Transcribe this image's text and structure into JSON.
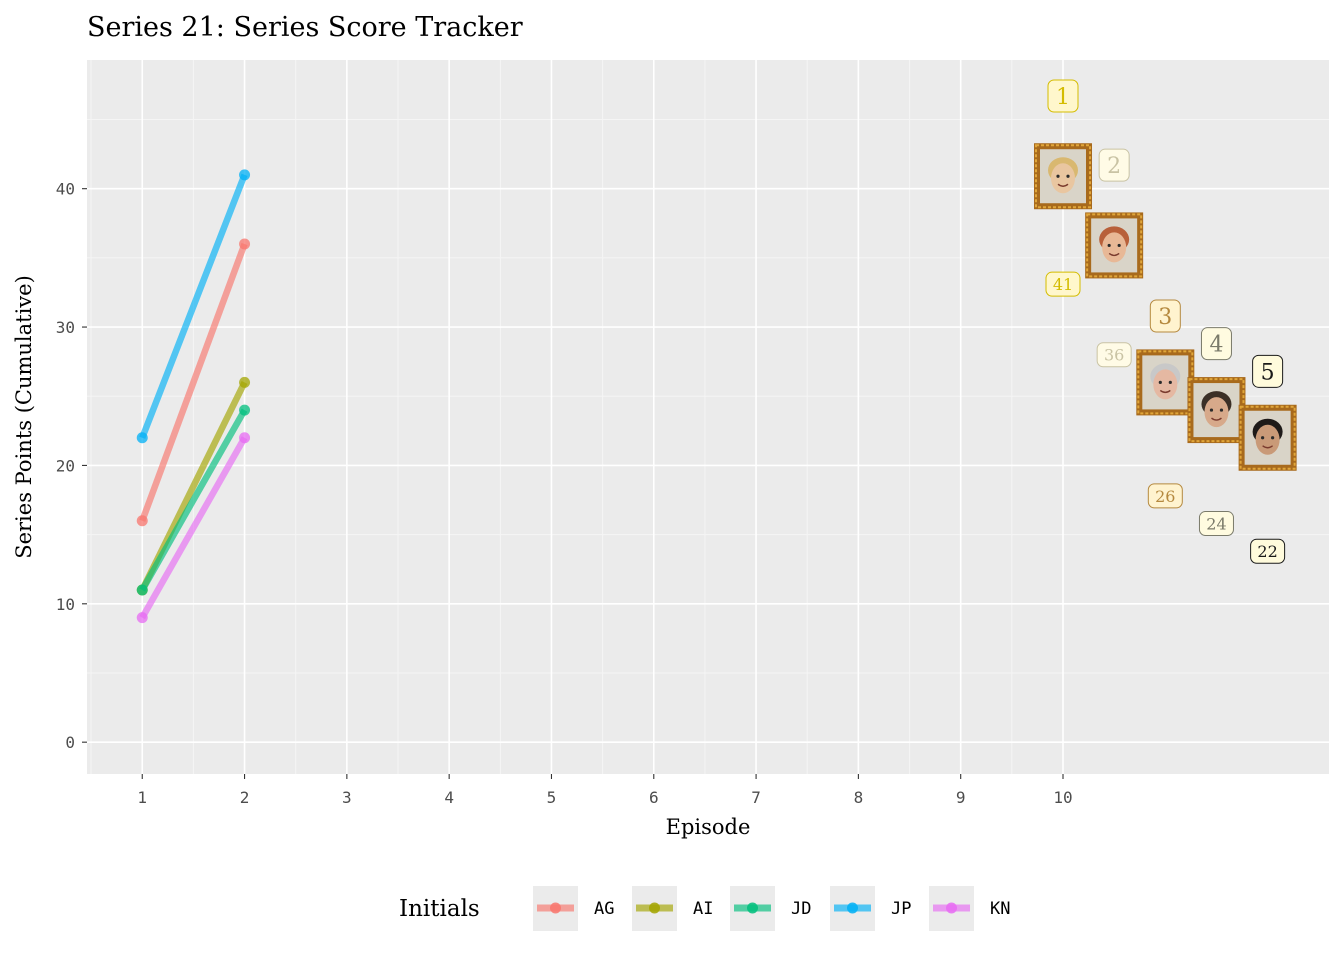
{
  "chart_data": {
    "type": "line",
    "title": "Series 21: Series Score Tracker",
    "xlabel": "Episode",
    "ylabel": "Series Points (Cumulative)",
    "x_ticks": [
      1,
      2,
      3,
      4,
      5,
      6,
      7,
      8,
      9,
      10
    ],
    "y_ticks": [
      0,
      10,
      20,
      30,
      40
    ],
    "xlim": [
      0.46,
      12.6
    ],
    "ylim": [
      -2.3,
      49.3
    ],
    "grid": true,
    "legend_title": "Initials",
    "legend_position": "bottom",
    "series": [
      {
        "name": "AG",
        "color": "#F8766D",
        "x": [
          1,
          2
        ],
        "values": [
          16,
          36
        ]
      },
      {
        "name": "AI",
        "color": "#A3A500",
        "x": [
          1,
          2
        ],
        "values": [
          11,
          26
        ]
      },
      {
        "name": "JD",
        "color": "#00BF7D",
        "x": [
          1,
          2
        ],
        "values": [
          11,
          24
        ]
      },
      {
        "name": "JP",
        "color": "#00B0F6",
        "x": [
          1,
          2
        ],
        "values": [
          22,
          41
        ]
      },
      {
        "name": "KN",
        "color": "#E76BF3",
        "x": [
          1,
          2
        ],
        "values": [
          9,
          22
        ]
      }
    ],
    "leaderboard": [
      {
        "rank": "1",
        "score": "41",
        "rank_x": 10,
        "rank_y": 46.7,
        "score_x": 10,
        "score_y": 33.1,
        "face_x": 10,
        "face_y": 40.9,
        "color": "#d4bc00",
        "fill": "#fff7cc",
        "face_icon": "contestant-face-icon",
        "skin": "#e9c6a0",
        "hair": "#d9b870"
      },
      {
        "rank": "2",
        "score": "36",
        "rank_x": 10.5,
        "rank_y": 41.7,
        "score_x": 10.5,
        "score_y": 28.0,
        "face_x": 10.5,
        "face_y": 35.9,
        "color": "#c9c3a4",
        "fill": "#fffbe6",
        "face_icon": "contestant-face-icon",
        "skin": "#e8b896",
        "hair": "#b8603a"
      },
      {
        "rank": "3",
        "score": "26",
        "rank_x": 11.0,
        "rank_y": 30.8,
        "score_x": 11.0,
        "score_y": 17.8,
        "face_x": 11.0,
        "face_y": 26.0,
        "color": "#b5893f",
        "fill": "#fff3cf",
        "face_icon": "contestant-face-icon",
        "skin": "#e5b8a2",
        "hair": "#c8c8c8"
      },
      {
        "rank": "4",
        "score": "24",
        "rank_x": 11.5,
        "rank_y": 28.8,
        "score_x": 11.5,
        "score_y": 15.8,
        "face_x": 11.5,
        "face_y": 24.0,
        "color": "#7a7a6a",
        "fill": "#fffbe0",
        "face_icon": "contestant-face-icon",
        "skin": "#d7a98a",
        "hair": "#3b2f26"
      },
      {
        "rank": "5",
        "score": "22",
        "rank_x": 12.0,
        "rank_y": 26.8,
        "score_x": 12.0,
        "score_y": 13.8,
        "face_x": 12.0,
        "face_y": 22.0,
        "color": "#1a1a1a",
        "fill": "#fffbdc",
        "face_icon": "contestant-face-icon",
        "skin": "#c99a78",
        "hair": "#1e1a18"
      }
    ]
  }
}
